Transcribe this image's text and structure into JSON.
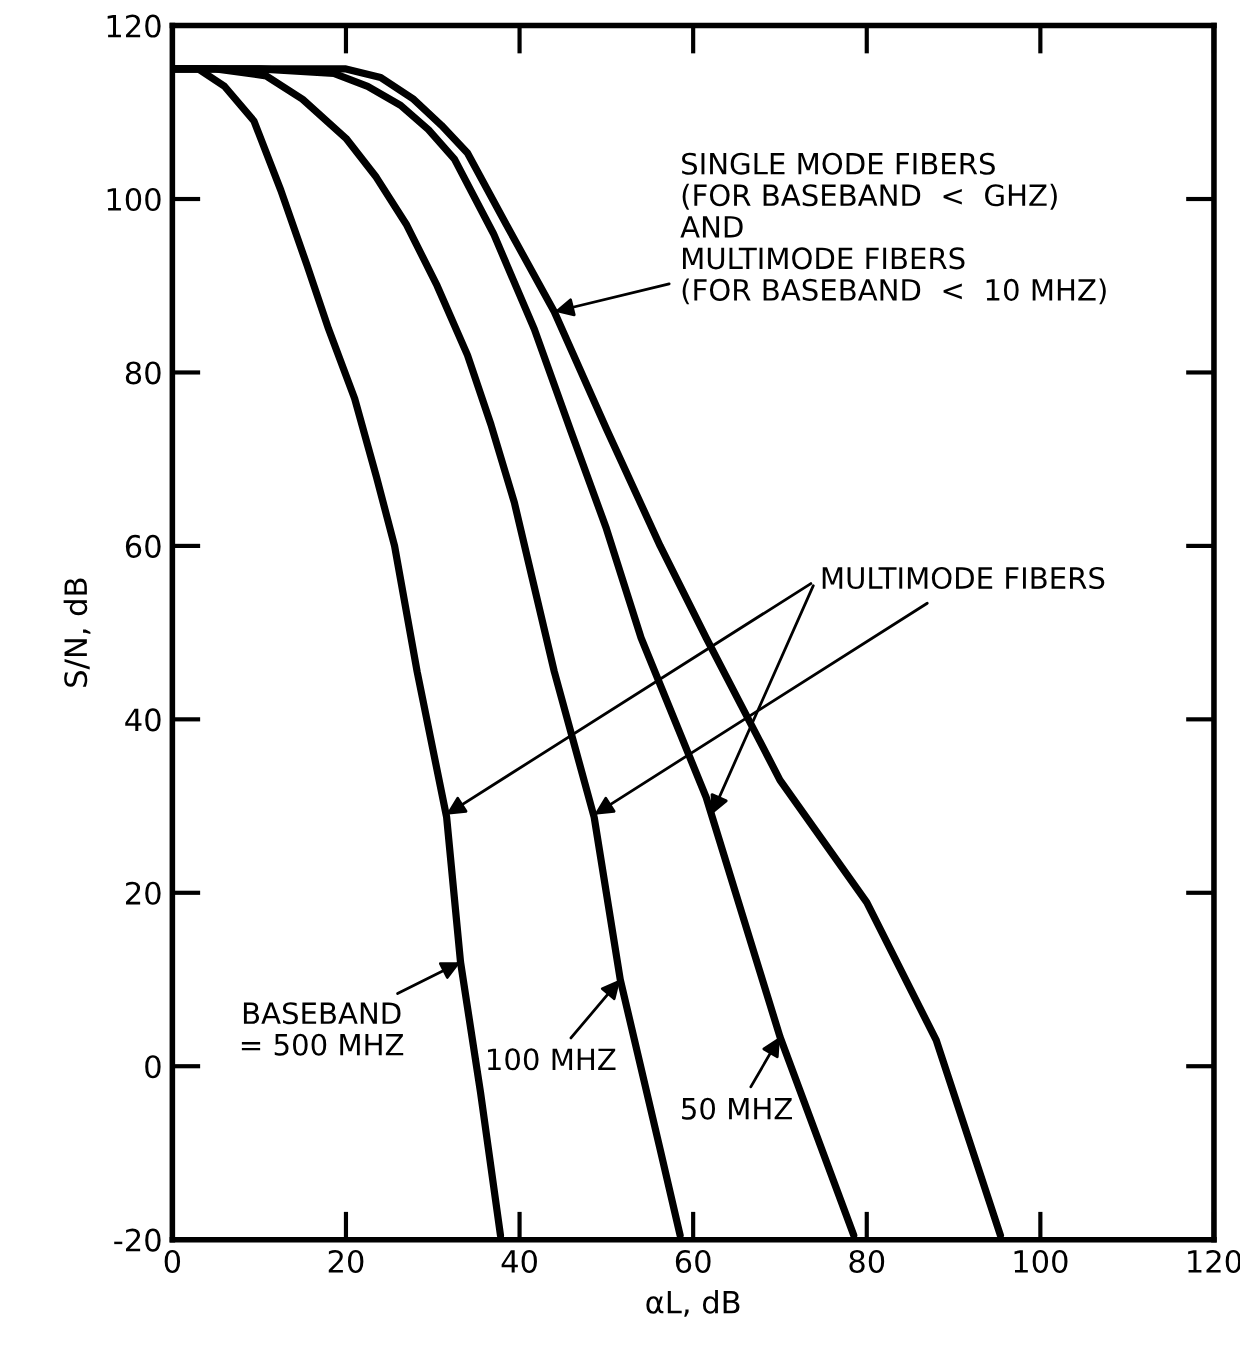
{
  "chart_data": {
    "type": "line",
    "xlabel": "αL, dB",
    "ylabel": "S/N, dB",
    "xlim": [
      0,
      120
    ],
    "ylim": [
      -20,
      120
    ],
    "xticks": [
      0,
      20,
      40,
      60,
      80,
      100,
      120
    ],
    "yticks": [
      -20,
      0,
      20,
      40,
      60,
      80,
      100,
      120
    ],
    "grid": false,
    "legend": false,
    "marker": "none",
    "line_style": "solid",
    "series": [
      {
        "color": "#000000",
        "x": [
          0,
          3,
          6,
          9.4,
          12.5,
          15.5,
          18,
          21,
          23.5,
          25.6,
          28.2,
          31.6,
          33.2,
          35.5,
          37.8
        ],
        "values": [
          115,
          115,
          113,
          109,
          101,
          92.4,
          85,
          77,
          68,
          60,
          45.5,
          28.7,
          12,
          -3,
          -19.5
        ]
      },
      {
        "color": "#000000",
        "x": [
          0,
          5,
          10.8,
          15,
          20,
          23.5,
          27,
          30.5,
          34,
          36.7,
          39.4,
          44,
          48.6,
          51.6,
          56.2,
          58.5
        ],
        "values": [
          115,
          115,
          114.2,
          111.5,
          107,
          102.5,
          97,
          90,
          82,
          74,
          65,
          45.5,
          28.7,
          10,
          -9.6,
          -19.5
        ]
      },
      {
        "color": "#000000",
        "x": [
          0,
          10,
          18.6,
          22.5,
          26.3,
          29.5,
          32.5,
          37,
          41.7,
          46,
          50,
          54,
          61.5,
          70,
          78.5
        ],
        "values": [
          115,
          115,
          114.5,
          113,
          110.8,
          108,
          104.6,
          96,
          85,
          73,
          62,
          49.4,
          31,
          3.4,
          -19.5
        ]
      },
      {
        "color": "#000000",
        "x": [
          0,
          20,
          24,
          27.8,
          31,
          34,
          38.5,
          44,
          50,
          56.2,
          61.5,
          70,
          80,
          88,
          95.4
        ],
        "values": [
          115,
          115,
          114,
          111.5,
          108.5,
          105.3,
          97,
          87,
          73.5,
          60,
          49.4,
          33,
          18.9,
          3,
          -19.5
        ]
      }
    ],
    "annotations": [
      {
        "text": "SINGLE MODE FIBERS\n(FOR BASEBAND  <  GHZ)\nAND\nMULTIMODE FIBERS\n(FOR BASEBAND  <  10 MHZ)",
        "x": 44,
        "y": 87
      },
      {
        "text": "MULTIMODE FIBERS",
        "x": 48.6,
        "y": 29
      },
      {
        "text": "BASEBAND\n= 500 MHZ",
        "x": 33.2,
        "y": 12
      },
      {
        "text": "100 MHZ",
        "x": 51.6,
        "y": 10
      },
      {
        "text": "50 MHZ",
        "x": 70,
        "y": 3.4
      }
    ]
  }
}
